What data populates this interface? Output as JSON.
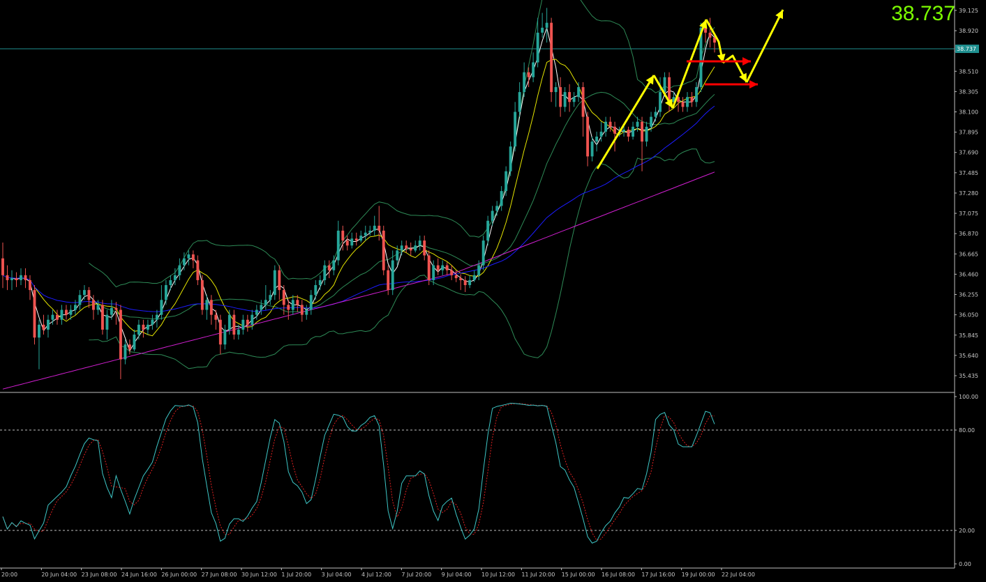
{
  "chart_data": {
    "type": "candlestick",
    "main_pane": {
      "ylim": [
        35.28,
        39.23
      ],
      "price_ticks": [
        "39.125",
        "38.920",
        "38.715",
        "38.510",
        "38.305",
        "38.100",
        "37.895",
        "37.690",
        "37.485",
        "37.280",
        "37.075",
        "36.870",
        "36.665",
        "36.460",
        "36.255",
        "36.050",
        "35.845",
        "35.640",
        "35.435"
      ],
      "current_price": 38.737,
      "current_price_label": "38.737",
      "candles": [
        [
          36.62,
          36.45,
          36.78,
          36.32
        ],
        [
          36.45,
          36.4,
          36.55,
          36.3
        ],
        [
          36.4,
          36.42,
          36.5,
          36.3
        ],
        [
          36.42,
          36.4,
          36.48,
          36.33
        ],
        [
          36.4,
          36.45,
          36.52,
          36.35
        ],
        [
          36.45,
          36.4,
          36.52,
          36.32
        ],
        [
          36.4,
          36.3,
          36.45,
          36.2
        ],
        [
          36.3,
          35.82,
          36.35,
          35.75
        ],
        [
          35.82,
          35.95,
          36.0,
          35.5
        ],
        [
          35.95,
          35.9,
          36.05,
          35.85
        ],
        [
          35.9,
          36.0,
          36.05,
          35.82
        ],
        [
          36.0,
          36.05,
          36.1,
          35.95
        ],
        [
          36.05,
          36.0,
          36.1,
          35.95
        ],
        [
          36.0,
          36.1,
          36.15,
          35.95
        ],
        [
          36.1,
          36.05,
          36.15,
          36.0
        ],
        [
          36.05,
          36.1,
          36.15,
          36.0
        ],
        [
          36.1,
          36.15,
          36.2,
          36.05
        ],
        [
          36.15,
          36.25,
          36.3,
          36.1
        ],
        [
          36.25,
          36.3,
          36.35,
          36.2
        ],
        [
          36.3,
          36.2,
          36.33,
          36.12
        ],
        [
          36.2,
          36.1,
          36.25,
          36.0
        ],
        [
          36.1,
          36.15,
          36.2,
          36.05
        ],
        [
          36.15,
          35.9,
          36.2,
          35.85
        ],
        [
          35.9,
          36.05,
          36.1,
          35.8
        ],
        [
          36.05,
          36.12,
          36.2,
          36.0
        ],
        [
          36.12,
          36.1,
          36.18,
          35.95
        ],
        [
          36.1,
          35.6,
          36.15,
          35.4
        ],
        [
          35.6,
          35.75,
          35.8,
          35.55
        ],
        [
          35.75,
          35.7,
          35.8,
          35.65
        ],
        [
          35.7,
          35.85,
          35.9,
          35.68
        ],
        [
          35.85,
          35.95,
          36.0,
          35.8
        ],
        [
          35.95,
          35.9,
          36.0,
          35.82
        ],
        [
          35.9,
          35.95,
          36.0,
          35.85
        ],
        [
          35.95,
          36.0,
          36.05,
          35.9
        ],
        [
          36.0,
          36.05,
          36.1,
          35.92
        ],
        [
          36.05,
          36.2,
          36.35,
          36.0
        ],
        [
          36.2,
          36.35,
          36.4,
          36.15
        ],
        [
          36.35,
          36.4,
          36.45,
          36.3
        ],
        [
          36.4,
          36.45,
          36.52,
          36.35
        ],
        [
          36.45,
          36.55,
          36.62,
          36.4
        ],
        [
          36.55,
          36.62,
          36.68,
          36.5
        ],
        [
          36.62,
          36.66,
          36.7,
          36.55
        ],
        [
          36.66,
          36.6,
          36.7,
          36.52
        ],
        [
          36.6,
          36.4,
          36.65,
          36.35
        ],
        [
          36.4,
          36.1,
          36.45,
          36.05
        ],
        [
          36.1,
          36.2,
          36.25,
          36.0
        ],
        [
          36.2,
          36.05,
          36.25,
          35.95
        ],
        [
          36.05,
          36.0,
          36.1,
          35.9
        ],
        [
          36.0,
          35.75,
          36.05,
          35.65
        ],
        [
          35.75,
          35.9,
          35.95,
          35.7
        ],
        [
          35.9,
          36.05,
          36.1,
          35.85
        ],
        [
          36.05,
          35.85,
          36.1,
          35.8
        ],
        [
          35.85,
          35.9,
          35.95,
          35.8
        ],
        [
          35.9,
          36.0,
          36.05,
          35.85
        ],
        [
          36.0,
          35.95,
          36.05,
          35.88
        ],
        [
          35.95,
          36.05,
          36.1,
          35.9
        ],
        [
          36.05,
          36.1,
          36.15,
          36.0
        ],
        [
          36.1,
          36.15,
          36.2,
          36.05
        ],
        [
          36.15,
          36.2,
          36.35,
          36.1
        ],
        [
          36.2,
          36.25,
          36.3,
          36.15
        ],
        [
          36.25,
          36.5,
          36.55,
          36.2
        ],
        [
          36.5,
          36.3,
          36.55,
          36.2
        ],
        [
          36.3,
          36.15,
          36.35,
          36.05
        ],
        [
          36.15,
          36.1,
          36.2,
          36.0
        ],
        [
          36.1,
          36.2,
          36.25,
          36.05
        ],
        [
          36.2,
          36.15,
          36.25,
          36.08
        ],
        [
          36.15,
          36.05,
          36.2,
          35.98
        ],
        [
          36.05,
          36.1,
          36.15,
          36.0
        ],
        [
          36.1,
          36.25,
          36.3,
          36.05
        ],
        [
          36.25,
          36.35,
          36.4,
          36.2
        ],
        [
          36.35,
          36.4,
          36.45,
          36.3
        ],
        [
          36.4,
          36.55,
          36.6,
          36.35
        ],
        [
          36.55,
          36.5,
          36.6,
          36.42
        ],
        [
          36.5,
          36.6,
          36.65,
          36.45
        ],
        [
          36.6,
          36.9,
          37.0,
          36.55
        ],
        [
          36.9,
          36.8,
          36.95,
          36.7
        ],
        [
          36.8,
          36.75,
          36.85,
          36.7
        ],
        [
          36.75,
          36.82,
          36.88,
          36.72
        ],
        [
          36.82,
          36.8,
          36.88,
          36.75
        ],
        [
          36.8,
          36.85,
          36.9,
          36.78
        ],
        [
          36.85,
          36.88,
          36.95,
          36.8
        ],
        [
          36.88,
          36.9,
          36.95,
          36.85
        ],
        [
          36.9,
          36.95,
          37.05,
          36.85
        ],
        [
          36.95,
          36.9,
          37.15,
          36.8
        ],
        [
          36.9,
          36.5,
          36.95,
          36.45
        ],
        [
          36.5,
          36.3,
          36.55,
          36.25
        ],
        [
          36.3,
          36.6,
          36.7,
          36.25
        ],
        [
          36.6,
          36.7,
          36.75,
          36.55
        ],
        [
          36.7,
          36.75,
          36.8,
          36.65
        ],
        [
          36.75,
          36.72,
          36.8,
          36.68
        ],
        [
          36.72,
          36.7,
          36.78,
          36.65
        ],
        [
          36.7,
          36.75,
          36.8,
          36.68
        ],
        [
          36.75,
          36.8,
          36.85,
          36.7
        ],
        [
          36.8,
          36.65,
          36.85,
          36.6
        ],
        [
          36.65,
          36.4,
          36.7,
          36.35
        ],
        [
          36.4,
          36.55,
          36.6,
          36.35
        ],
        [
          36.55,
          36.5,
          36.62,
          36.45
        ],
        [
          36.5,
          36.55,
          36.6,
          36.45
        ],
        [
          36.55,
          36.5,
          36.58,
          36.45
        ],
        [
          36.5,
          36.45,
          36.55,
          36.4
        ],
        [
          36.45,
          36.42,
          36.5,
          36.38
        ],
        [
          36.42,
          36.4,
          36.46,
          36.3
        ],
        [
          36.4,
          36.35,
          36.44,
          36.28
        ],
        [
          36.35,
          36.4,
          36.45,
          36.32
        ],
        [
          36.4,
          36.45,
          36.5,
          36.38
        ],
        [
          36.45,
          36.55,
          36.6,
          36.4
        ],
        [
          36.55,
          36.8,
          36.85,
          36.5
        ],
        [
          36.8,
          37.0,
          37.05,
          36.75
        ],
        [
          37.0,
          37.1,
          37.15,
          36.95
        ],
        [
          37.1,
          37.15,
          37.2,
          37.05
        ],
        [
          37.15,
          37.3,
          37.35,
          37.1
        ],
        [
          37.3,
          37.5,
          37.55,
          37.25
        ],
        [
          37.5,
          37.75,
          37.8,
          37.45
        ],
        [
          37.75,
          38.1,
          38.2,
          37.7
        ],
        [
          38.1,
          38.3,
          38.4,
          38.05
        ],
        [
          38.3,
          38.5,
          38.6,
          38.25
        ],
        [
          38.5,
          38.45,
          38.55,
          38.35
        ],
        [
          38.45,
          38.6,
          38.7,
          38.4
        ],
        [
          38.6,
          38.9,
          39.05,
          38.55
        ],
        [
          38.9,
          38.95,
          39.1,
          38.85
        ],
        [
          38.95,
          39.0,
          39.15,
          38.8
        ],
        [
          39.0,
          38.3,
          39.05,
          38.2
        ],
        [
          38.3,
          38.35,
          38.4,
          38.15
        ],
        [
          38.35,
          38.15,
          38.45,
          38.05
        ],
        [
          38.15,
          38.3,
          38.35,
          38.1
        ],
        [
          38.3,
          38.2,
          38.38,
          38.1
        ],
        [
          38.2,
          38.25,
          38.3,
          38.15
        ],
        [
          38.25,
          38.35,
          38.4,
          38.2
        ],
        [
          38.35,
          38.05,
          38.4,
          37.85
        ],
        [
          38.05,
          37.65,
          38.1,
          37.55
        ],
        [
          37.65,
          37.8,
          37.85,
          37.6
        ],
        [
          37.8,
          37.85,
          37.9,
          37.7
        ],
        [
          37.85,
          37.9,
          38.0,
          37.8
        ],
        [
          37.9,
          38.0,
          38.05,
          37.85
        ],
        [
          38.0,
          37.95,
          38.05,
          37.9
        ],
        [
          37.95,
          37.88,
          38.0,
          37.7
        ],
        [
          37.88,
          37.9,
          37.95,
          37.85
        ],
        [
          37.9,
          37.92,
          37.98,
          37.85
        ],
        [
          37.92,
          37.85,
          37.95,
          37.8
        ],
        [
          37.85,
          37.95,
          38.0,
          37.82
        ],
        [
          37.95,
          38.0,
          38.05,
          37.9
        ],
        [
          38.0,
          37.8,
          38.05,
          37.5
        ],
        [
          37.8,
          37.95,
          38.0,
          37.75
        ],
        [
          37.95,
          38.05,
          38.1,
          37.9
        ],
        [
          38.05,
          38.1,
          38.15,
          38.0
        ],
        [
          38.1,
          38.3,
          38.45,
          38.05
        ],
        [
          38.3,
          38.45,
          38.5,
          38.25
        ],
        [
          38.45,
          38.2,
          38.5,
          38.1
        ],
        [
          38.2,
          38.25,
          38.3,
          38.15
        ],
        [
          38.25,
          38.2,
          38.3,
          38.1
        ],
        [
          38.2,
          38.15,
          38.25,
          38.1
        ],
        [
          38.15,
          38.25,
          38.3,
          38.1
        ],
        [
          38.25,
          38.2,
          38.3,
          38.15
        ],
        [
          38.2,
          38.35,
          38.4,
          38.15
        ],
        [
          38.35,
          38.95,
          39.0,
          38.3
        ],
        [
          38.95,
          38.9,
          39.0,
          38.8
        ],
        [
          38.9,
          38.85,
          39.05,
          38.75
        ],
        [
          38.85,
          38.8,
          38.9,
          38.7
        ]
      ],
      "annotation_arrows": {
        "yellow": [
          [
            [
              0.0,
              37.53
            ],
            [
              0.0,
              38.45
            ]
          ],
          [
            [
              0.0,
              38.45
            ],
            [
              0.0,
              38.05
            ]
          ],
          [
            [
              0.0,
              38.05
            ],
            [
              0.0,
              38.95
            ]
          ]
        ],
        "note": "drawn in script"
      }
    },
    "sub_pane": {
      "ylim": [
        0,
        100
      ],
      "ticks": [
        "100.00",
        "80.00",
        "20.00",
        "0.00"
      ],
      "levels": [
        80,
        20
      ]
    },
    "x_tick_labels": [
      "20:00",
      "20 Jun 04:00",
      "23 Jun 08:00",
      "24 Jun 16:00",
      "26 Jun 00:00",
      "27 Jun 08:00",
      "30 Jun 12:00",
      "1 Jul 20:00",
      "3 Jul 04:00",
      "4 Jul 12:00",
      "7 Jul 20:00",
      "9 Jul 04:00",
      "10 Jul 12:00",
      "11 Jul 20:00",
      "15 Jul 00:00",
      "16 Jul 08:00",
      "17 Jul 16:00",
      "19 Jul 00:00",
      "22 Jul 04:00"
    ],
    "colors": {
      "background": "#000000",
      "bull": "#26a69a",
      "bear": "#ef5350",
      "bollinger": "#2e8b57",
      "ma_fast": "#ffffff",
      "ma_mid": "#e6e600",
      "ma_blue": "#1c1cff",
      "ma_magenta": "#d21fd2",
      "stoch_main": "#3ec7c7",
      "stoch_signal": "#e02020",
      "grid": "#c0c0c0",
      "arrow_yellow": "#ffff00",
      "arrow_red": "#ff0000",
      "price_readout": "#7cfc00",
      "price_line": "#1f8f8f"
    }
  }
}
